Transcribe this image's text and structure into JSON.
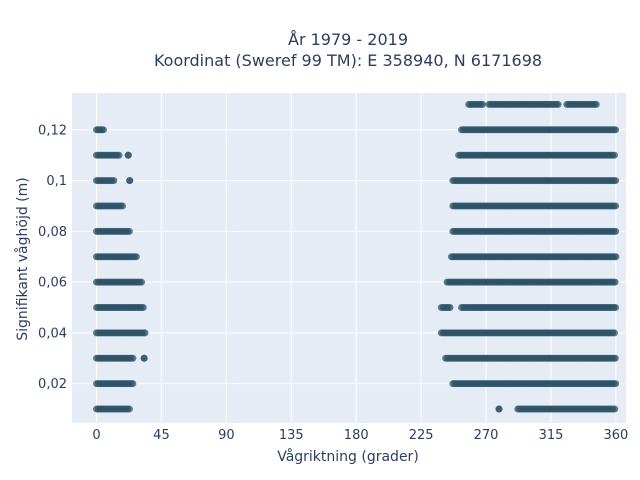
{
  "chart_data": {
    "type": "scatter",
    "title_line1": "År 1979 - 2019",
    "title_line2": "Koordinat (Sweref 99 TM): E 358940, N 6171698",
    "xlabel": "Vågriktning (grader)",
    "ylabel": "Signifikant våghöjd (m)",
    "xlim": [
      -17,
      367
    ],
    "ylim": [
      0.0045,
      0.1345
    ],
    "xticks": [
      0,
      45,
      90,
      135,
      180,
      225,
      270,
      315,
      360
    ],
    "xtick_labels": [
      "0",
      "45",
      "90",
      "135",
      "180",
      "225",
      "270",
      "315",
      "360"
    ],
    "yticks": [
      0.02,
      0.04,
      0.06,
      0.08,
      0.1,
      0.12
    ],
    "ytick_labels": [
      "0,02",
      "0,04",
      "0,06",
      "0,08",
      "0,1",
      "0,12"
    ],
    "grid": true,
    "marker_color": "#2e5266",
    "series": [
      {
        "segments": [
          {
            "y": 0.01,
            "x_ranges": [
              [
                0,
                23
              ]
            ]
          },
          {
            "y": 0.01,
            "x_ranges": [
              [
                279,
                279
              ],
              [
                292,
                360
              ]
            ]
          },
          {
            "y": 0.02,
            "x_ranges": [
              [
                0,
                26
              ]
            ]
          },
          {
            "y": 0.02,
            "x_ranges": [
              [
                247,
                360
              ]
            ]
          },
          {
            "y": 0.03,
            "x_ranges": [
              [
                0,
                26
              ],
              [
                33,
                33
              ]
            ]
          },
          {
            "y": 0.03,
            "x_ranges": [
              [
                242,
                360
              ]
            ]
          },
          {
            "y": 0.04,
            "x_ranges": [
              [
                0,
                34
              ]
            ]
          },
          {
            "y": 0.04,
            "x_ranges": [
              [
                239,
                360
              ]
            ]
          },
          {
            "y": 0.05,
            "x_ranges": [
              [
                0,
                33
              ]
            ]
          },
          {
            "y": 0.05,
            "x_ranges": [
              [
                239,
                245
              ],
              [
                253,
                360
              ]
            ]
          },
          {
            "y": 0.06,
            "x_ranges": [
              [
                0,
                32
              ]
            ]
          },
          {
            "y": 0.06,
            "x_ranges": [
              [
                243,
                360
              ]
            ]
          },
          {
            "y": 0.07,
            "x_ranges": [
              [
                0,
                28
              ]
            ]
          },
          {
            "y": 0.07,
            "x_ranges": [
              [
                246,
                360
              ]
            ]
          },
          {
            "y": 0.08,
            "x_ranges": [
              [
                0,
                23
              ]
            ]
          },
          {
            "y": 0.08,
            "x_ranges": [
              [
                247,
                360
              ]
            ]
          },
          {
            "y": 0.09,
            "x_ranges": [
              [
                0,
                18
              ]
            ]
          },
          {
            "y": 0.09,
            "x_ranges": [
              [
                247,
                360
              ]
            ]
          },
          {
            "y": 0.1,
            "x_ranges": [
              [
                0,
                12
              ],
              [
                23,
                23
              ]
            ]
          },
          {
            "y": 0.1,
            "x_ranges": [
              [
                247,
                360
              ]
            ]
          },
          {
            "y": 0.11,
            "x_ranges": [
              [
                0,
                16
              ],
              [
                22,
                22
              ]
            ]
          },
          {
            "y": 0.11,
            "x_ranges": [
              [
                251,
                360
              ]
            ]
          },
          {
            "y": 0.12,
            "x_ranges": [
              [
                0,
                5
              ]
            ]
          },
          {
            "y": 0.12,
            "x_ranges": [
              [
                253,
                360
              ]
            ]
          },
          {
            "y": 0.13,
            "x_ranges": [
              [
                258,
                268
              ],
              [
                272,
                320
              ],
              [
                326,
                347
              ]
            ]
          }
        ]
      }
    ]
  }
}
